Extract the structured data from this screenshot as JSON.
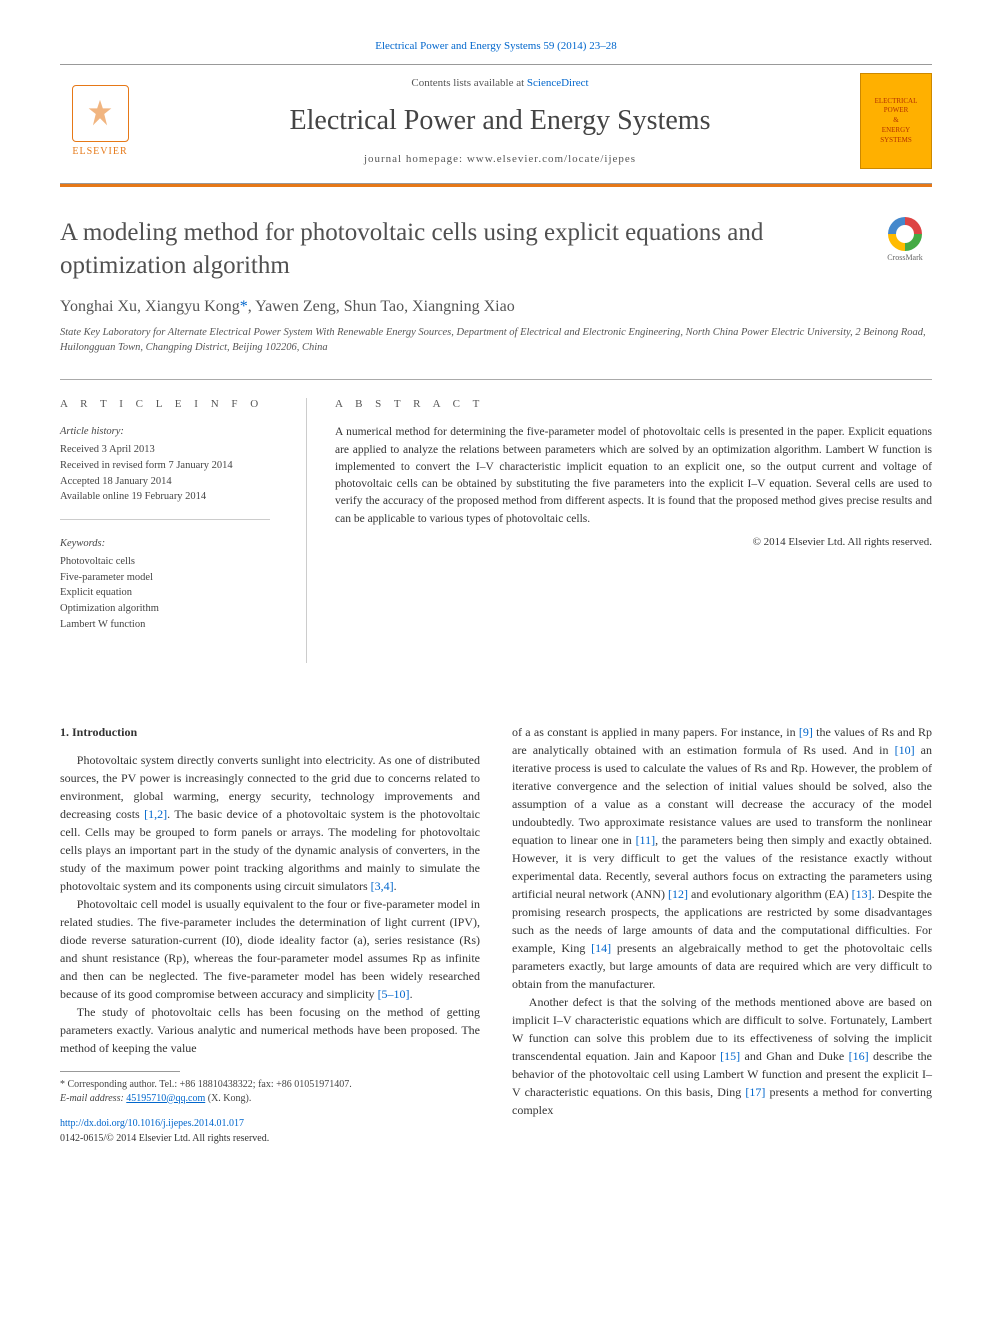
{
  "citation": "Electrical Power and Energy Systems 59 (2014) 23–28",
  "header": {
    "contents_prefix": "Contents lists available at ",
    "contents_link": "ScienceDirect",
    "journal": "Electrical Power and Energy Systems",
    "homepage_prefix": "journal homepage: ",
    "homepage_url": "www.elsevier.com/locate/ijepes",
    "publisher": "ELSEVIER",
    "cover_line1": "ELECTRICAL",
    "cover_line2": "POWER",
    "cover_amp": "&",
    "cover_line3": "ENERGY",
    "cover_line4": "SYSTEMS"
  },
  "crossmark_label": "CrossMark",
  "title": "A modeling method for photovoltaic cells using explicit equations and optimization algorithm",
  "authors_html": "Yonghai Xu, Xiangyu Kong",
  "corr_mark": "*",
  "authors_rest": ", Yawen Zeng, Shun Tao, Xiangning Xiao",
  "affiliation": "State Key Laboratory for Alternate Electrical Power System With Renewable Energy Sources, Department of Electrical and Electronic Engineering, North China Power Electric University, 2 Beinong Road, Huilongguan Town, Changping District, Beijing 102206, China",
  "info_heading": "A R T I C L E   I N F O",
  "abstract_heading": "A B S T R A C T",
  "history_label": "Article history:",
  "history": {
    "received": "Received 3 April 2013",
    "revised": "Received in revised form 7 January 2014",
    "accepted": "Accepted 18 January 2014",
    "online": "Available online 19 February 2014"
  },
  "keywords_label": "Keywords:",
  "keywords": {
    "k1": "Photovoltaic cells",
    "k2": "Five-parameter model",
    "k3": "Explicit equation",
    "k4": "Optimization algorithm",
    "k5": "Lambert W function"
  },
  "abstract": "A numerical method for determining the five-parameter model of photovoltaic cells is presented in the paper. Explicit equations are applied to analyze the relations between parameters which are solved by an optimization algorithm. Lambert W function is implemented to convert the I–V characteristic implicit equation to an explicit one, so the output current and voltage of photovoltaic cells can be obtained by substituting the five parameters into the explicit I–V equation. Several cells are used to verify the accuracy of the proposed method from different aspects. It is found that the proposed method gives precise results and can be applicable to various types of photovoltaic cells.",
  "copyright": "© 2014 Elsevier Ltd. All rights reserved.",
  "section1_heading": "1. Introduction",
  "para1": "Photovoltaic system directly converts sunlight into electricity. As one of distributed sources, the PV power is increasingly connected to the grid due to concerns related to environment, global warming, energy security, technology improvements and decreasing costs [1,2]. The basic device of a photovoltaic system is the photovoltaic cell. Cells may be grouped to form panels or arrays. The modeling for photovoltaic cells plays an important part in the study of the dynamic analysis of converters, in the study of the maximum power point tracking algorithms and mainly to simulate the photovoltaic system and its components using circuit simulators [3,4].",
  "para2": "Photovoltaic cell model is usually equivalent to the four or five-parameter model in related studies. The five-parameter includes the determination of light current (IPV), diode reverse saturation-current (I0), diode ideality factor (a), series resistance (Rs) and shunt resistance (Rp), whereas the four-parameter model assumes Rp as infinite and then can be neglected. The five-parameter model has been widely researched because of its good compromise between accuracy and simplicity [5–10].",
  "para3": "The study of photovoltaic cells has been focusing on the method of getting parameters exactly. Various analytic and numerical methods have been proposed. The method of keeping the value",
  "para4": "of a as constant is applied in many papers. For instance, in [9] the values of Rs and Rp are analytically obtained with an estimation formula of Rs used. And in [10] an iterative process is used to calculate the values of Rs and Rp. However, the problem of iterative convergence and the selection of initial values should be solved, also the assumption of a value as a constant will decrease the accuracy of the model undoubtedly. Two approximate resistance values are used to transform the nonlinear equation to linear one in [11], the parameters being then simply and exactly obtained. However, it is very difficult to get the values of the resistance exactly without experimental data. Recently, several authors focus on extracting the parameters using artificial neural network (ANN) [12] and evolutionary algorithm (EA) [13]. Despite the promising research prospects, the applications are restricted by some disadvantages such as the needs of large amounts of data and the computational difficulties. For example, King [14] presents an algebraically method to get the photovoltaic cells parameters exactly, but large amounts of data are required which are very difficult to obtain from the manufacturer.",
  "para5": "Another defect is that the solving of the methods mentioned above are based on implicit I–V characteristic equations which are difficult to solve. Fortunately, Lambert W function can solve this problem due to its effectiveness of solving the implicit transcendental equation. Jain and Kapoor [15] and Ghan and Duke [16] describe the behavior of the photovoltaic cell using Lambert W function and present the explicit I–V characteristic equations. On this basis, Ding [17] presents a method for converting complex",
  "footnote_corr": "* Corresponding author. Tel.: +86 18810438322; fax: +86 01051971407.",
  "footnote_email_label": "E-mail address:",
  "footnote_email": "45195710@qq.com",
  "footnote_email_suffix": " (X. Kong).",
  "doi_url": "http://dx.doi.org/10.1016/j.ijepes.2014.01.017",
  "issn_line": "0142-0615/© 2014 Elsevier Ltd. All rights reserved.",
  "colors": {
    "link": "#0066cc",
    "accent": "#e67817",
    "text": "#333333",
    "cover_bg": "#ffb000",
    "cover_text": "#b33000"
  }
}
